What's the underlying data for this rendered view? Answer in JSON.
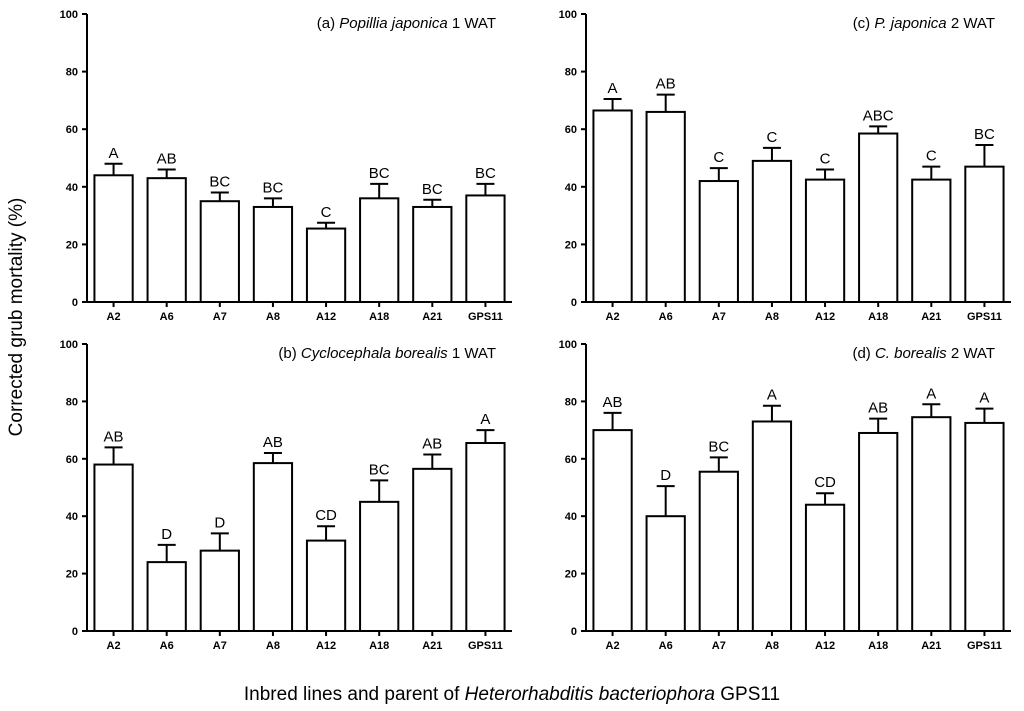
{
  "figure": {
    "ylabel": "Corrected grub mortality (%)",
    "xlabel_prefix": "Inbred lines and parent of ",
    "xlabel_species": "Heterorhabditis bacteriophora",
    "xlabel_suffix": " GPS11"
  },
  "chart_data": [
    {
      "type": "bar",
      "panel": "a",
      "title_prefix": "(a) ",
      "title_species": "Popillia japonica",
      "title_suffix": " 1 WAT",
      "categories": [
        "A2",
        "A6",
        "A7",
        "A8",
        "A12",
        "A18",
        "A21",
        "GPS11"
      ],
      "values": [
        44,
        43,
        35,
        33,
        25.5,
        36,
        33,
        37
      ],
      "errors": [
        4,
        3,
        3,
        3,
        2,
        5,
        2.5,
        4
      ],
      "significance": [
        "A",
        "AB",
        "BC",
        "BC",
        "C",
        "BC",
        "BC",
        "BC"
      ],
      "ylim": [
        0,
        100
      ],
      "yticks": [
        0,
        20,
        40,
        60,
        80,
        100
      ],
      "color": "#ffffff",
      "edge_color": "#000000"
    },
    {
      "type": "bar",
      "panel": "b",
      "title_prefix": "(b) ",
      "title_species": "Cyclocephala borealis",
      "title_suffix": " 1 WAT",
      "categories": [
        "A2",
        "A6",
        "A7",
        "A8",
        "A12",
        "A18",
        "A21",
        "GPS11"
      ],
      "values": [
        58,
        24,
        28,
        58.5,
        31.5,
        45,
        56.5,
        65.5
      ],
      "errors": [
        6,
        6,
        6,
        3.5,
        5,
        7.5,
        5,
        4.5
      ],
      "significance": [
        "AB",
        "D",
        "D",
        "AB",
        "CD",
        "BC",
        "AB",
        "A"
      ],
      "ylim": [
        0,
        100
      ],
      "yticks": [
        0,
        20,
        40,
        60,
        80,
        100
      ],
      "color": "#ffffff",
      "edge_color": "#000000"
    },
    {
      "type": "bar",
      "panel": "c",
      "title_prefix": "(c) ",
      "title_species": "P. japonica",
      "title_suffix": " 2 WAT",
      "categories": [
        "A2",
        "A6",
        "A7",
        "A8",
        "A12",
        "A18",
        "A21",
        "GPS11"
      ],
      "values": [
        66.5,
        66,
        42,
        49,
        42.5,
        58.5,
        42.5,
        47
      ],
      "errors": [
        4,
        6,
        4.5,
        4.5,
        3.5,
        2.5,
        4.5,
        7.5
      ],
      "significance": [
        "A",
        "AB",
        "C",
        "C",
        "C",
        "ABC",
        "C",
        "BC"
      ],
      "ylim": [
        0,
        100
      ],
      "yticks": [
        0,
        20,
        40,
        60,
        80,
        100
      ],
      "color": "#ffffff",
      "edge_color": "#000000"
    },
    {
      "type": "bar",
      "panel": "d",
      "title_prefix": "(d) ",
      "title_species": "C. borealis",
      "title_suffix": " 2 WAT",
      "categories": [
        "A2",
        "A6",
        "A7",
        "A8",
        "A12",
        "A18",
        "A21",
        "GPS11"
      ],
      "values": [
        70,
        40,
        55.5,
        73,
        44,
        69,
        74.5,
        72.5
      ],
      "errors": [
        6,
        10.5,
        5,
        5.5,
        4,
        5,
        4.5,
        5
      ],
      "significance": [
        "AB",
        "D",
        "BC",
        "A",
        "CD",
        "AB",
        "A",
        "A"
      ],
      "ylim": [
        0,
        100
      ],
      "yticks": [
        0,
        20,
        40,
        60,
        80,
        100
      ],
      "color": "#ffffff",
      "edge_color": "#000000"
    }
  ]
}
